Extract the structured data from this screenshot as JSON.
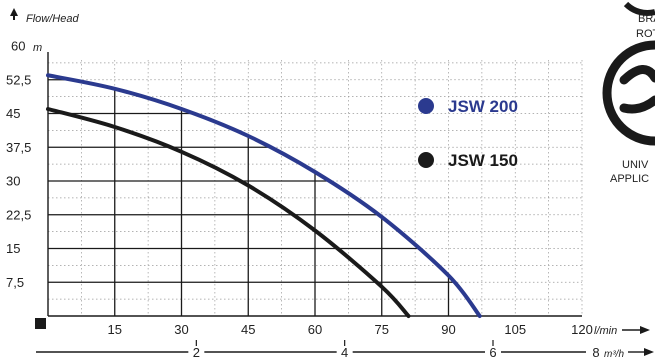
{
  "chart_data": {
    "type": "line",
    "title": "",
    "ylabel": "Flow/Head",
    "yunit": "m",
    "xunit": "l/min",
    "x2unit": "m³/h",
    "xlim": [
      0,
      120
    ],
    "ylim": [
      0,
      60
    ],
    "yticks": [
      "7,5",
      "15",
      "22,5",
      "30",
      "37,5",
      "45",
      "52,5",
      "60"
    ],
    "xticks": [
      "15",
      "30",
      "45",
      "60",
      "75",
      "90",
      "105",
      "120"
    ],
    "x2ticks": [
      "2",
      "4",
      "6",
      "8"
    ],
    "grid": true,
    "legend_position": "right",
    "series": [
      {
        "name": "JSW 200",
        "color": "#2b3a8f",
        "points": [
          [
            0,
            53.5
          ],
          [
            15,
            50.5
          ],
          [
            30,
            46
          ],
          [
            45,
            40
          ],
          [
            60,
            32
          ],
          [
            75,
            22
          ],
          [
            90,
            9
          ],
          [
            97,
            0
          ]
        ]
      },
      {
        "name": "JSW 150",
        "color": "#1a1a1a",
        "points": [
          [
            0,
            46
          ],
          [
            15,
            42
          ],
          [
            30,
            36.5
          ],
          [
            45,
            29
          ],
          [
            60,
            19
          ],
          [
            75,
            6.5
          ],
          [
            81,
            0
          ]
        ]
      }
    ]
  },
  "side_labels": [
    "BRA",
    "ROT",
    "UNIV",
    "APPLIC"
  ]
}
